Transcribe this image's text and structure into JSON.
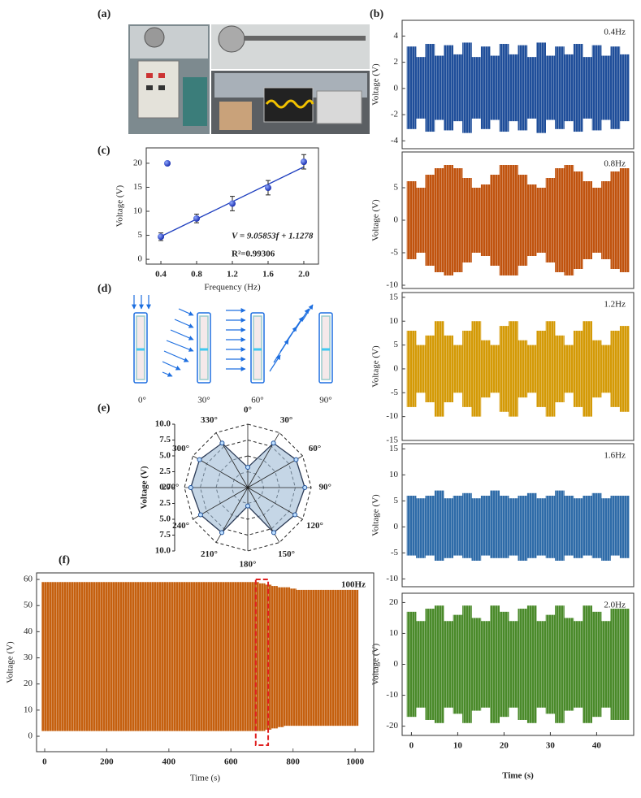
{
  "panel_labels": [
    "(a)",
    "(b)",
    "(c)",
    "(d)",
    "(e)",
    "(f)"
  ],
  "diagram_d": {
    "angles": [
      "0°",
      "30°",
      "60°",
      "90°"
    ]
  },
  "chart_data": [
    {
      "type": "area",
      "title": "0.4Hz",
      "ylabel": "Voltage (V)",
      "color": "#1f4e9a",
      "x": [
        0,
        2,
        4,
        6,
        8,
        10,
        12,
        14,
        16,
        18,
        20,
        22,
        24,
        26,
        28,
        30,
        32,
        34,
        36,
        38,
        40,
        42,
        44,
        46
      ],
      "series": [
        {
          "values": [
            3.2,
            2.4,
            3.4,
            2.5,
            3.3,
            2.6,
            3.5,
            2.4,
            3.2,
            2.5,
            3.4,
            2.6,
            3.3,
            2.4,
            3.5,
            2.5,
            3.2,
            2.6,
            3.4,
            2.4,
            3.3,
            2.5,
            3.2,
            2.6
          ]
        },
        {
          "values": [
            -3.1,
            -2.3,
            -3.3,
            -2.4,
            -3.2,
            -2.5,
            -3.4,
            -2.3,
            -3.1,
            -2.4,
            -3.3,
            -2.5,
            -3.2,
            -2.3,
            -3.4,
            -2.4,
            -3.1,
            -2.5,
            -3.3,
            -2.3,
            -3.2,
            -2.4,
            -3.1,
            -2.5
          ]
        }
      ],
      "xlim": [
        -2,
        48
      ],
      "ylim": [
        -4.6,
        5.2
      ],
      "yticks": [
        -4,
        -2,
        0,
        2,
        4
      ]
    },
    {
      "type": "area",
      "title": "0.8Hz",
      "ylabel": "Voltage (V)",
      "color": "#c0530e",
      "x": [
        0,
        2,
        4,
        6,
        8,
        10,
        12,
        14,
        16,
        18,
        20,
        22,
        24,
        26,
        28,
        30,
        32,
        34,
        36,
        38,
        40,
        42,
        44,
        46
      ],
      "series": [
        {
          "values": [
            6,
            5,
            7,
            8,
            8.5,
            8,
            6.5,
            5,
            5.5,
            7,
            8.5,
            8.5,
            7,
            5.5,
            5,
            6.5,
            8,
            8.5,
            7.5,
            6,
            5,
            6,
            7.5,
            8
          ]
        },
        {
          "values": [
            -6,
            -5,
            -7,
            -8,
            -8.5,
            -8,
            -6.5,
            -5,
            -5.5,
            -7,
            -8.5,
            -8.5,
            -7,
            -5.5,
            -5,
            -6.5,
            -8,
            -8.5,
            -7.5,
            -6,
            -5,
            -6,
            -7.5,
            -8
          ]
        }
      ],
      "xlim": [
        -2,
        48
      ],
      "ylim": [
        -10.5,
        10.5
      ],
      "yticks": [
        -10,
        -5,
        0,
        5
      ]
    },
    {
      "type": "area",
      "title": "1.2Hz",
      "ylabel": "Voltage (V)",
      "color": "#d49a06",
      "x": [
        0,
        2,
        4,
        6,
        8,
        10,
        12,
        14,
        16,
        18,
        20,
        22,
        24,
        26,
        28,
        30,
        32,
        34,
        36,
        38,
        40,
        42,
        44,
        46
      ],
      "series": [
        {
          "values": [
            8,
            5,
            7,
            10,
            7,
            5,
            8,
            10,
            6,
            5,
            9,
            10,
            6,
            5,
            8,
            10,
            7,
            5,
            8,
            10,
            6,
            5,
            8,
            9
          ]
        },
        {
          "values": [
            -8,
            -5,
            -7,
            -10,
            -7,
            -5,
            -8,
            -10,
            -6,
            -5,
            -9,
            -10,
            -6,
            -5,
            -8,
            -10,
            -7,
            -5,
            -8,
            -10,
            -6,
            -5,
            -8,
            -9
          ]
        }
      ],
      "xlim": [
        -2,
        48
      ],
      "ylim": [
        -15,
        16
      ],
      "yticks": [
        -15,
        -10,
        -5,
        0,
        5,
        10,
        15
      ]
    },
    {
      "type": "area",
      "title": "1.6Hz",
      "ylabel": "Voltage (V)",
      "color": "#2e6ba8",
      "x": [
        0,
        2,
        4,
        6,
        8,
        10,
        12,
        14,
        16,
        18,
        20,
        22,
        24,
        26,
        28,
        30,
        32,
        34,
        36,
        38,
        40,
        42,
        44,
        46
      ],
      "series": [
        {
          "values": [
            6,
            5.5,
            6,
            7,
            5.5,
            6,
            6.5,
            5.5,
            6,
            7,
            6,
            5.5,
            6,
            6.5,
            5.5,
            6,
            7,
            6,
            5.5,
            6,
            6.5,
            5.5,
            6,
            6
          ]
        },
        {
          "values": [
            -5.5,
            -6,
            -5.5,
            -6.5,
            -6,
            -5.5,
            -6,
            -6.5,
            -5.5,
            -6,
            -6,
            -5.5,
            -6.5,
            -6,
            -5.5,
            -6,
            -6.5,
            -5.5,
            -6,
            -5.5,
            -6,
            -6.5,
            -5.5,
            -6
          ]
        }
      ],
      "xlim": [
        -2,
        48
      ],
      "ylim": [
        -11.5,
        16
      ],
      "yticks": [
        -10,
        -5,
        0,
        5,
        10,
        15
      ]
    },
    {
      "type": "area",
      "title": "2.0Hz",
      "ylabel": "Voltage (V)",
      "xlabel": "Time (s)",
      "color": "#4a8a2a",
      "x": [
        0,
        2,
        4,
        6,
        8,
        10,
        12,
        14,
        16,
        18,
        20,
        22,
        24,
        26,
        28,
        30,
        32,
        34,
        36,
        38,
        40,
        42,
        44,
        46
      ],
      "series": [
        {
          "values": [
            17,
            14,
            18,
            19,
            14,
            16,
            19,
            15,
            14,
            19,
            17,
            14,
            18,
            19,
            14,
            16,
            19,
            15,
            14,
            19,
            17,
            14,
            18,
            18
          ]
        },
        {
          "values": [
            -17,
            -14,
            -18,
            -19,
            -14,
            -16,
            -19,
            -15,
            -14,
            -19,
            -17,
            -14,
            -18,
            -19,
            -14,
            -16,
            -19,
            -15,
            -14,
            -19,
            -17,
            -14,
            -18,
            -18
          ]
        }
      ],
      "xlim": [
        -2,
        48
      ],
      "ylim": [
        -23,
        23
      ],
      "yticks": [
        -20,
        -10,
        0,
        10,
        20
      ],
      "xticks": [
        0,
        10,
        20,
        30,
        40
      ]
    },
    {
      "type": "scatter",
      "xlabel": "Frequency (Hz)",
      "ylabel": "Voltage (V)",
      "color": "#1f3fbf",
      "x": [
        0.4,
        0.8,
        1.2,
        1.6,
        2.0
      ],
      "values": [
        4.7,
        8.5,
        11.6,
        14.9,
        20.3
      ],
      "errors": [
        0.8,
        0.9,
        1.5,
        1.5,
        1.5
      ],
      "fit": {
        "slope": 9.05853,
        "intercept": 1.1278
      },
      "annotations": [
        "V = 9.05853f + 1.1278",
        "R²=0.99306"
      ],
      "xlim": [
        0.236,
        2.164
      ],
      "ylim": [
        -1,
        23.2
      ],
      "xticks": [
        0.4,
        0.8,
        1.2,
        1.6,
        {
          "value": 2,
          "label": "2.0"
        }
      ],
      "yticks": [
        0,
        5,
        10,
        15,
        20
      ]
    },
    {
      "type": "radar",
      "ylabel": "Voltage (V)",
      "color": "#9ebbd6",
      "categories": [
        "0°",
        "30°",
        "60°",
        "90°",
        "120°",
        "150°",
        "180°",
        "210°",
        "240°",
        "270°",
        "300°",
        "330°"
      ],
      "values": [
        3.2,
        8.1,
        8.8,
        9,
        8.6,
        8.2,
        2.9,
        8.2,
        8.6,
        9,
        8.8,
        8.1
      ],
      "ylim": [
        -10,
        10
      ],
      "yticks": [
        {
          "value": 10,
          "label": "10.0"
        },
        7.5,
        {
          "value": 5,
          "label": "5.0"
        },
        2.5,
        {
          "value": 0,
          "label": "0.0"
        },
        {
          "value": -2.5,
          "label": "2.5"
        },
        {
          "value": -5,
          "label": "5.0"
        },
        {
          "value": -7.5,
          "label": "7.5"
        },
        {
          "value": -10,
          "label": "10.0"
        }
      ]
    },
    {
      "type": "area",
      "title": "100Hz",
      "xlabel": "Time (s)",
      "ylabel": "Voltage (V)",
      "color": "#c5600f",
      "x": [
        0,
        20,
        40,
        60,
        80,
        100,
        120,
        140,
        160,
        180,
        200,
        220,
        240,
        260,
        280,
        300,
        320,
        340,
        360,
        380,
        400,
        420,
        440,
        460,
        480,
        500,
        520,
        540,
        560,
        580,
        600,
        620,
        640,
        660,
        680,
        700,
        720,
        740,
        760,
        780,
        800,
        820,
        840,
        860,
        880,
        900,
        920,
        940,
        960,
        980,
        1000
      ],
      "series": [
        {
          "values": [
            59,
            59,
            59,
            59,
            59,
            59,
            59,
            59,
            59,
            59,
            59,
            59,
            59,
            59,
            59,
            59,
            59,
            59,
            59,
            59,
            59,
            59,
            59,
            59,
            59,
            59,
            59,
            59,
            59,
            59,
            59,
            59,
            59,
            59,
            59,
            58.5,
            58,
            57.5,
            57,
            57,
            56.5,
            56,
            56,
            56,
            56,
            56,
            56,
            56,
            56,
            56,
            56
          ]
        },
        {
          "values": [
            2,
            2,
            2,
            2,
            2,
            2,
            2,
            2,
            2,
            2,
            2,
            2,
            2,
            2,
            2,
            2,
            2,
            2,
            2,
            2,
            2,
            2,
            2,
            2,
            2,
            2,
            2,
            2,
            2,
            2,
            2,
            2,
            2,
            2,
            2,
            2,
            2.5,
            3,
            3.5,
            4,
            4,
            4,
            4,
            4,
            4,
            4,
            4,
            4,
            4,
            4,
            4
          ]
        }
      ],
      "highlight": [
        680,
        720
      ],
      "xlim": [
        -26,
        1060
      ],
      "ylim": [
        -5.9,
        62.5
      ],
      "xticks": [
        0,
        200,
        400,
        600,
        800,
        1000
      ],
      "yticks": [
        0,
        10,
        20,
        30,
        40,
        50,
        60
      ]
    }
  ]
}
